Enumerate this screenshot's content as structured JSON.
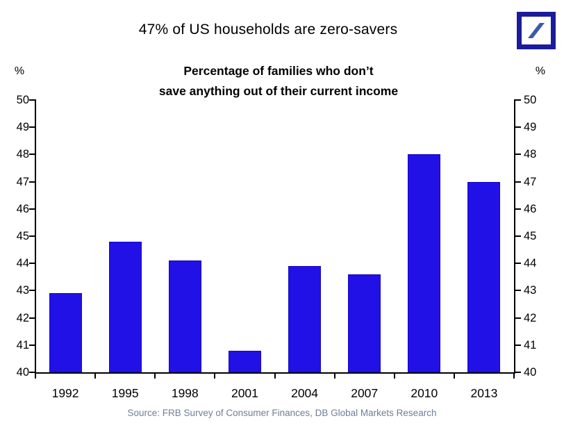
{
  "chart_data": {
    "type": "bar",
    "title": "47% of US households are zero-savers",
    "subtitle_lines": [
      "Percentage of families who don’t",
      "save anything out of their current income"
    ],
    "categories": [
      "1992",
      "1995",
      "1998",
      "2001",
      "2004",
      "2007",
      "2010",
      "2013"
    ],
    "values": [
      42.9,
      44.8,
      44.1,
      40.8,
      43.9,
      43.6,
      48.0,
      47.0
    ],
    "y_axis": {
      "unit_label": "%",
      "min": 40,
      "max": 50,
      "tick_step": 1,
      "tick_labels": [
        "40",
        "41",
        "42",
        "43",
        "44",
        "45",
        "46",
        "47",
        "48",
        "49",
        "50"
      ],
      "shown_on_both_sides": true
    },
    "grid": false,
    "legend": null,
    "source": "Source: FRB Survey of Consumer Finances, DB Global Markets Research"
  },
  "branding": {
    "logo_name": "deutsche-bank-logo"
  },
  "colors": {
    "background": "#FFFFFF",
    "text": "#000000",
    "axis": "#000000",
    "bar": "#2211E6",
    "bar_border": "#1508C4",
    "source_text": "#6F7E95",
    "logo_frame": "#1B1B9E",
    "logo_slash": "#3D59AE"
  }
}
